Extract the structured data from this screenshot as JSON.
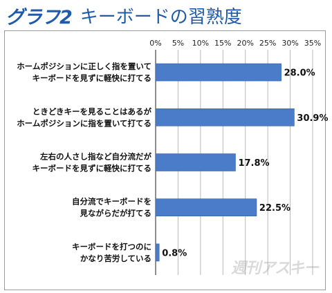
{
  "header": {
    "label": "グラフ2",
    "title": "キーボードの習熟度"
  },
  "watermark": "週刊アスキー",
  "chart_data": {
    "type": "bar",
    "orientation": "horizontal",
    "categories": [
      [
        "ホームポジションに正しく指を置いて",
        "キーボードを見ずに軽快に打てる"
      ],
      [
        "ときどきキーを見ることはあるが",
        "ホームポジションに指を置いて打てる"
      ],
      [
        "左右の人さし指など自分流だが",
        "キーボードを見ずに軽快に打てる"
      ],
      [
        "自分流でキーボードを",
        "見ながらだが打てる"
      ],
      [
        "キーボードを打つのに",
        "かなり苦労している"
      ]
    ],
    "values": [
      28.0,
      30.9,
      17.8,
      22.5,
      0.8
    ],
    "value_labels": [
      "28.0%",
      "30.9%",
      "17.8%",
      "22.5%",
      "0.8%"
    ],
    "xlim": [
      0,
      35
    ],
    "xticks": [
      0,
      5,
      10,
      15,
      20,
      25,
      30,
      35
    ],
    "xtick_labels": [
      "0%",
      "5%",
      "10%",
      "15%",
      "20%",
      "25%",
      "30%",
      "35%"
    ],
    "grid": true,
    "bar_color": "#4a7cc9",
    "grid_color": "#b8b8b8"
  }
}
